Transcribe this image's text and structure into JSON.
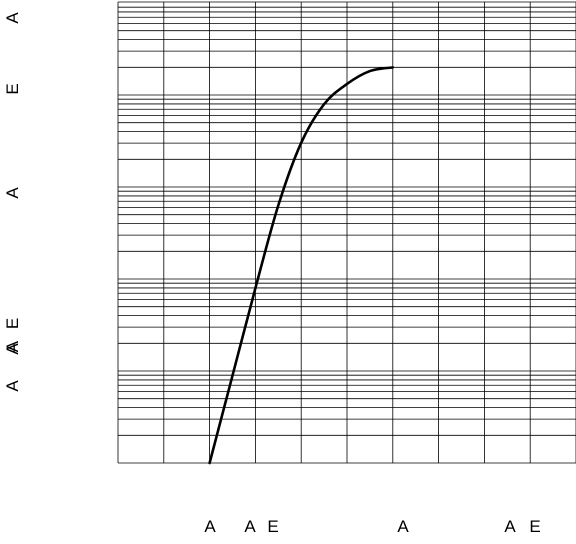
{
  "chart_data": {
    "type": "line",
    "title": "",
    "xlabel": "",
    "ylabel": "",
    "x_tick_labels": [
      "A",
      "A",
      "E",
      "A",
      "A",
      "E"
    ],
    "y_tick_labels": [
      "A",
      "E",
      "A",
      "A E",
      "A",
      "A"
    ],
    "grid": true,
    "x_grid_columns": 10,
    "y_bands": 4,
    "series": [
      {
        "color": "#000000",
        "x": [
          2.0,
          2.5,
          3.0,
          3.5,
          4.0,
          4.5,
          5.0,
          5.5,
          6.0
        ],
        "y": [
          0.0,
          0.95,
          1.9,
          2.8,
          3.48,
          3.9,
          4.12,
          4.26,
          4.3
        ]
      }
    ],
    "xlim": [
      0,
      10
    ],
    "ylim": [
      0,
      4.35
    ]
  }
}
